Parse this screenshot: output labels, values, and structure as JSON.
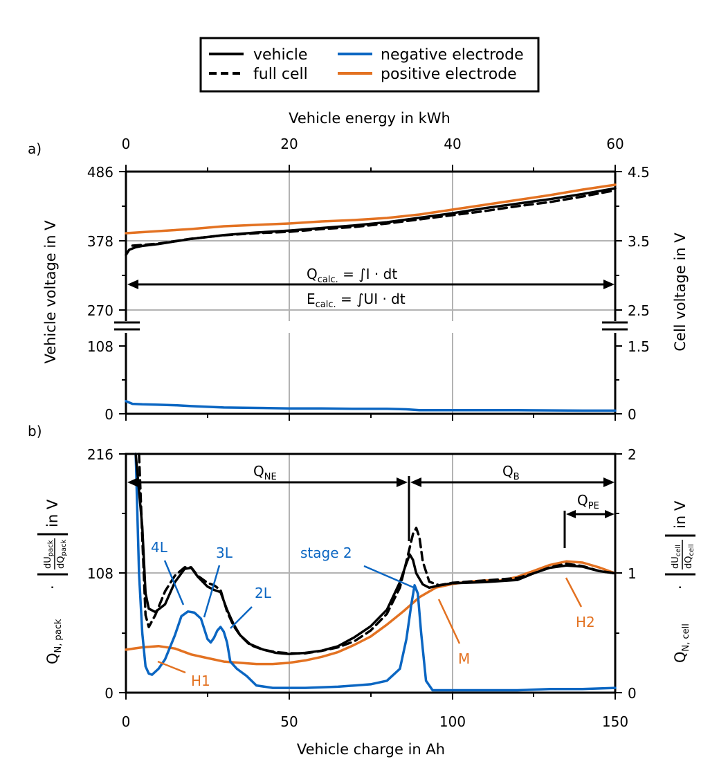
{
  "legend": {
    "vehicle": "vehicle",
    "full_cell": "full cell",
    "negative_electrode": "negative electrode",
    "positive_electrode": "positive electrode"
  },
  "colors": {
    "vehicle": "#000000",
    "full_cell": "#000000",
    "negative_electrode": "#0B66C2",
    "positive_electrode": "#E37222",
    "grid": "#b3b3b3"
  },
  "panel_a": {
    "label": "a)",
    "top_axis_label": "Vehicle energy in kWh",
    "top_ticks": [
      "0",
      "20",
      "40",
      "60"
    ],
    "left_label": "Vehicle voltage in V",
    "left_ticks_upper": [
      "486",
      "378",
      "270"
    ],
    "left_ticks_lower": [
      "108",
      "0"
    ],
    "right_label": "Cell voltage in V",
    "right_ticks_upper": [
      "4.5",
      "3.5",
      "2.5"
    ],
    "right_ticks_lower": [
      "1.5",
      "0"
    ],
    "q_formula": {
      "lhs": "Q",
      "sub": "calc.",
      "rhs": " = ∫I · dt"
    },
    "e_formula": {
      "lhs": "E",
      "sub": "calc.",
      "rhs": " = ∫UI · dt"
    }
  },
  "panel_b": {
    "label": "b)",
    "left_ticks": [
      "216",
      "108",
      "0"
    ],
    "right_ticks": [
      "2",
      "1",
      "0"
    ],
    "x_ticks": [
      "0",
      "50",
      "100",
      "150"
    ],
    "x_label": "Vehicle charge in Ah",
    "left_label": {
      "q": "Q",
      "q_sub": "N, pack",
      "dot": "·",
      "num": "dU",
      "num_sub": "pack",
      "den": "dQ",
      "den_sub": "pack",
      "unit": "in V"
    },
    "right_label": {
      "q": "Q",
      "q_sub": "N, cell",
      "dot": "·",
      "num": "dU",
      "num_sub": "cell",
      "den": "dQ",
      "den_sub": "cell",
      "unit": "in V"
    },
    "annotations": {
      "qne": {
        "main": "Q",
        "sub": "NE"
      },
      "qb": {
        "main": "Q",
        "sub": "B"
      },
      "qpe": {
        "main": "Q",
        "sub": "PE"
      },
      "l4": "4L",
      "l3": "3L",
      "l2": "2L",
      "stage2": "stage 2",
      "h1": "H1",
      "h2": "H2",
      "m": "M"
    }
  },
  "chart_data": [
    {
      "type": "line",
      "panel": "a",
      "xlabel": "Vehicle charge in Ah",
      "x2label": "Vehicle energy in kWh",
      "ylabel": "Vehicle voltage in V",
      "y2label": "Cell voltage in V",
      "xlim": [
        0,
        150
      ],
      "x2lim": [
        0,
        60
      ],
      "ylim_broken": [
        [
          0,
          108
        ],
        [
          270,
          486
        ]
      ],
      "y2lim_broken": [
        [
          0,
          1.5
        ],
        [
          2.5,
          4.5
        ]
      ],
      "grid": true,
      "series": [
        {
          "name": "vehicle",
          "style": "solid",
          "axis": "left",
          "x": [
            0,
            1,
            3,
            5,
            10,
            20,
            30,
            40,
            50,
            60,
            70,
            80,
            90,
            100,
            110,
            120,
            130,
            140,
            150
          ],
          "y": [
            356,
            364,
            368,
            370,
            373,
            381,
            387,
            391,
            394,
            398,
            402,
            407,
            414,
            421,
            429,
            436,
            443,
            451,
            460
          ]
        },
        {
          "name": "full cell",
          "style": "dashed",
          "axis": "right",
          "x": [
            2,
            5,
            10,
            20,
            30,
            40,
            50,
            60,
            70,
            80,
            90,
            100,
            110,
            120,
            130,
            140,
            150
          ],
          "y": [
            3.43,
            3.44,
            3.46,
            3.53,
            3.58,
            3.61,
            3.63,
            3.67,
            3.7,
            3.75,
            3.81,
            3.87,
            3.93,
            4.0,
            4.06,
            4.14,
            4.23
          ]
        },
        {
          "name": "positive electrode",
          "style": "solid",
          "axis": "right",
          "x": [
            0,
            10,
            20,
            30,
            40,
            50,
            60,
            70,
            80,
            90,
            100,
            110,
            120,
            130,
            140,
            150
          ],
          "y": [
            3.61,
            3.64,
            3.67,
            3.71,
            3.73,
            3.75,
            3.78,
            3.8,
            3.83,
            3.88,
            3.95,
            4.02,
            4.09,
            4.16,
            4.24,
            4.31
          ]
        },
        {
          "name": "negative electrode",
          "style": "solid",
          "axis": "right",
          "x": [
            0,
            2,
            5,
            10,
            15,
            20,
            30,
            40,
            50,
            60,
            70,
            80,
            86,
            90,
            100,
            120,
            140,
            150
          ],
          "y": [
            0.28,
            0.22,
            0.21,
            0.2,
            0.19,
            0.17,
            0.14,
            0.13,
            0.12,
            0.12,
            0.11,
            0.11,
            0.1,
            0.08,
            0.08,
            0.08,
            0.07,
            0.07
          ]
        }
      ]
    },
    {
      "type": "line",
      "panel": "b",
      "xlabel": "Vehicle charge in Ah",
      "xlim": [
        0,
        150
      ],
      "ylim": [
        0,
        216
      ],
      "y2lim": [
        0,
        2
      ],
      "grid": true,
      "series": [
        {
          "name": "vehicle",
          "style": "solid",
          "axis": "left",
          "x": [
            3,
            5,
            6,
            7,
            9,
            12,
            15,
            18,
            20,
            22,
            25,
            27,
            29,
            31,
            33,
            35,
            38,
            42,
            46,
            50,
            55,
            60,
            65,
            70,
            75,
            80,
            84,
            86,
            87,
            88,
            89,
            91,
            93,
            96,
            100,
            110,
            120,
            125,
            130,
            135,
            140,
            145,
            150
          ],
          "y": [
            216,
            150,
            90,
            76,
            73,
            80,
            100,
            112,
            113,
            105,
            96,
            93,
            91,
            75,
            62,
            52,
            44,
            39,
            36,
            35,
            36,
            38,
            42,
            50,
            60,
            75,
            100,
            117,
            125,
            120,
            108,
            98,
            95,
            97,
            99,
            100,
            102,
            108,
            113,
            115,
            114,
            110,
            108
          ]
        },
        {
          "name": "full cell",
          "style": "dashed",
          "axis": "right",
          "x": [
            4,
            5,
            6,
            7,
            9,
            12,
            15,
            18,
            20,
            22,
            25,
            27,
            29,
            31,
            33,
            35,
            38,
            42,
            46,
            50,
            55,
            60,
            65,
            70,
            75,
            80,
            84,
            86,
            88,
            89,
            90,
            91,
            93,
            96,
            100,
            110,
            120,
            125,
            130,
            135,
            140,
            145,
            150
          ],
          "y": [
            2.0,
            1.3,
            0.65,
            0.55,
            0.65,
            0.85,
            0.98,
            1.05,
            1.05,
            0.98,
            0.92,
            0.9,
            0.86,
            0.68,
            0.56,
            0.48,
            0.4,
            0.36,
            0.34,
            0.33,
            0.33,
            0.35,
            0.38,
            0.43,
            0.52,
            0.66,
            0.88,
            1.1,
            1.33,
            1.38,
            1.3,
            1.1,
            0.93,
            0.9,
            0.92,
            0.94,
            0.96,
            1.0,
            1.05,
            1.08,
            1.06,
            1.02,
            1.0
          ]
        },
        {
          "name": "negative electrode",
          "style": "solid",
          "axis": "right",
          "x": [
            3,
            4,
            5,
            6,
            7,
            8,
            10,
            12,
            15,
            17,
            19,
            21,
            23,
            25,
            26,
            27,
            28,
            29,
            30,
            31,
            32,
            34,
            37,
            40,
            45,
            55,
            65,
            75,
            80,
            84,
            86,
            87.5,
            88.5,
            89.5,
            90.5,
            92,
            94,
            100,
            110,
            120,
            130,
            140,
            150
          ],
          "y": [
            2.0,
            1.0,
            0.5,
            0.22,
            0.16,
            0.15,
            0.2,
            0.28,
            0.48,
            0.64,
            0.68,
            0.67,
            0.62,
            0.45,
            0.42,
            0.46,
            0.52,
            0.55,
            0.51,
            0.42,
            0.26,
            0.2,
            0.14,
            0.06,
            0.04,
            0.04,
            0.05,
            0.07,
            0.1,
            0.2,
            0.45,
            0.74,
            0.9,
            0.83,
            0.5,
            0.1,
            0.02,
            0.02,
            0.02,
            0.02,
            0.03,
            0.03,
            0.04
          ]
        },
        {
          "name": "positive electrode",
          "style": "solid",
          "axis": "right",
          "x": [
            0,
            5,
            10,
            15,
            20,
            25,
            30,
            35,
            40,
            45,
            50,
            55,
            60,
            65,
            70,
            75,
            80,
            85,
            90,
            95,
            100,
            105,
            110,
            115,
            120,
            125,
            130,
            135,
            140,
            145,
            150
          ],
          "y": [
            0.36,
            0.38,
            0.39,
            0.37,
            0.32,
            0.29,
            0.26,
            0.25,
            0.24,
            0.24,
            0.25,
            0.27,
            0.3,
            0.34,
            0.4,
            0.47,
            0.57,
            0.68,
            0.8,
            0.88,
            0.91,
            0.93,
            0.94,
            0.94,
            0.97,
            1.02,
            1.07,
            1.1,
            1.09,
            1.05,
            1.0
          ]
        }
      ]
    }
  ]
}
